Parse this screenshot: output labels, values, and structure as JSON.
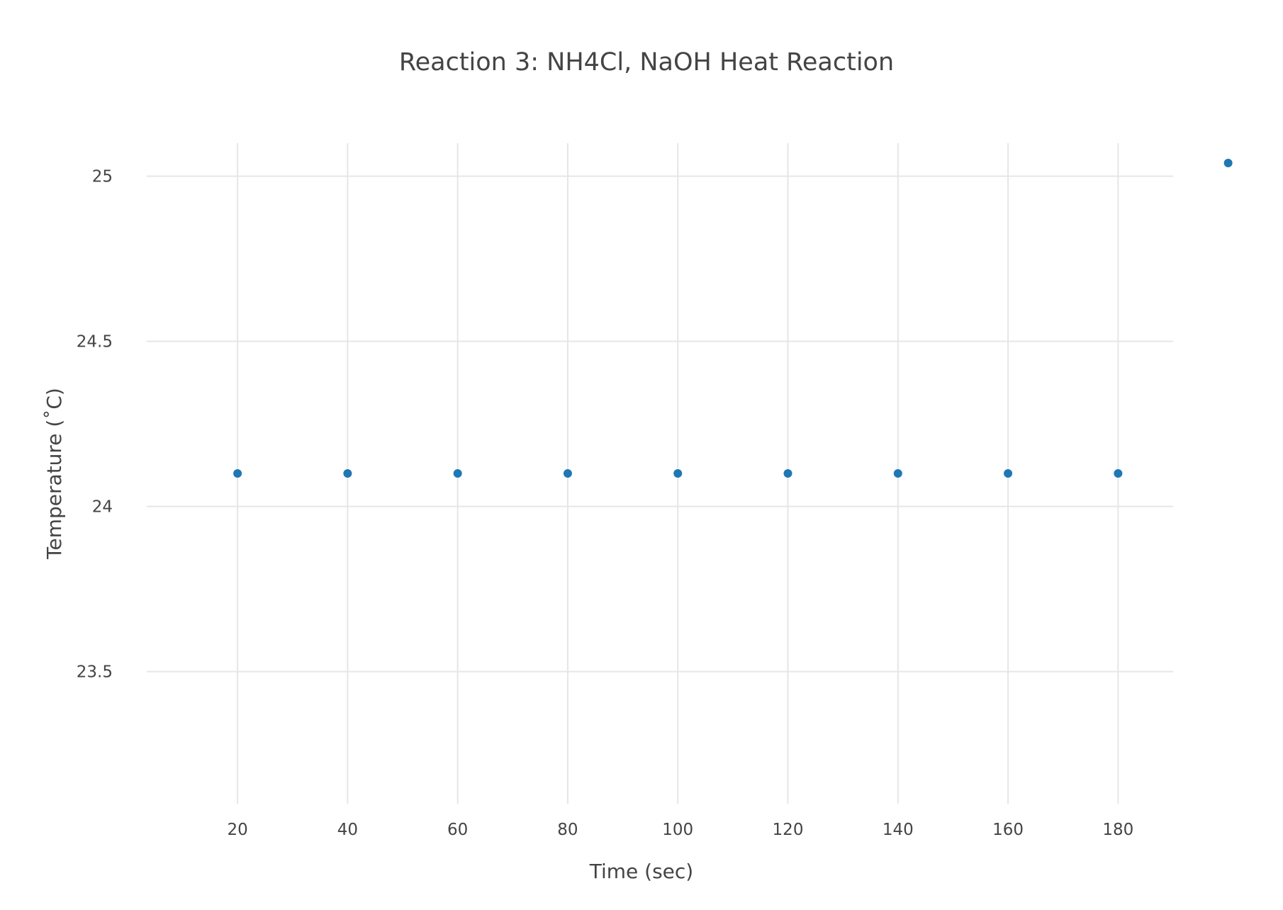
{
  "chart_data": {
    "type": "scatter",
    "title": "Reaction 3: NH4Cl, NaOH Heat Reaction",
    "xlabel": "Time (sec)",
    "ylabel": "Temperature (˚C)",
    "xlim": [
      3.5,
      190
    ],
    "ylim": [
      23.1,
      25.1
    ],
    "grid": true,
    "legend": "none",
    "marker_color": "#1f77b4",
    "x_ticks": [
      20,
      40,
      60,
      80,
      100,
      120,
      140,
      160,
      180
    ],
    "x_tick_labels": [
      "20",
      "40",
      "60",
      "80",
      "100",
      "120",
      "140",
      "160",
      "180"
    ],
    "y_ticks": [
      23.5,
      24,
      24.5,
      25
    ],
    "y_tick_labels": [
      "23.5",
      "24",
      "24.5",
      "25"
    ],
    "series": [
      {
        "x": [
          20,
          40,
          60,
          80,
          100,
          120,
          140,
          160,
          180,
          200
        ],
        "y": [
          24.1,
          24.1,
          24.1,
          24.1,
          24.1,
          24.1,
          24.1,
          24.1,
          24.1,
          25.04
        ]
      }
    ]
  }
}
